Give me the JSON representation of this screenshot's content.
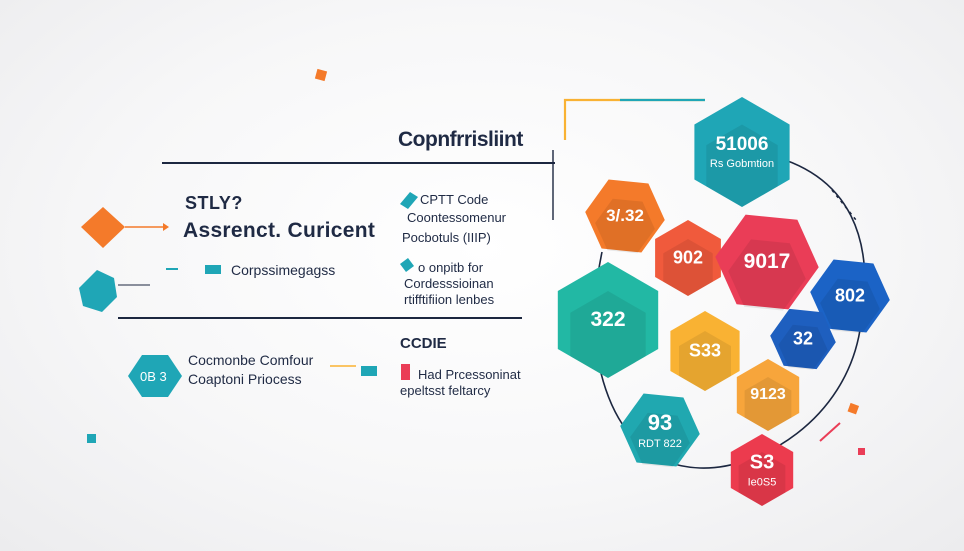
{
  "title": "Copnfrrisliint",
  "left": {
    "heading_small": "STLY?",
    "heading_big": "Assrenct. Curicent",
    "item1": "Corpssimegagss",
    "item2_line1": "Cocmonbe Comfour",
    "item2_line2": "Coaptoni Priocess",
    "item2_badge": "0B 3"
  },
  "middle": {
    "block1": [
      "CPTT Code",
      "Coontessomenur",
      "Pocbotuls (IIIP)"
    ],
    "block2": [
      "o onpitb for",
      "Cordesssioinan",
      "rtifftifiion lenbes"
    ],
    "block3_heading": "CCDIE",
    "block3": [
      "Had Prcessoninat",
      "epeltsst feltarcy"
    ]
  },
  "hexes": [
    {
      "id": "h1",
      "value": "51006",
      "sub": "Rs Gobmtion",
      "color": "#1fa6b6"
    },
    {
      "id": "h2",
      "value": "3/.32",
      "sub": "",
      "color": "#f47a2a"
    },
    {
      "id": "h3",
      "value": "902",
      "sub": "",
      "color": "#f05a3c"
    },
    {
      "id": "h4",
      "value": "9017",
      "sub": "",
      "color": "#ea3d57"
    },
    {
      "id": "h5",
      "value": "322",
      "sub": "",
      "color": "#22b8a4"
    },
    {
      "id": "h6",
      "value": "802",
      "sub": "",
      "color": "#1b63c6"
    },
    {
      "id": "h7",
      "value": "S33",
      "sub": "",
      "color": "#f9b233"
    },
    {
      "id": "h8",
      "value": "32",
      "sub": "",
      "color": "#1e5fbf"
    },
    {
      "id": "h9",
      "value": "9123",
      "sub": "",
      "color": "#f7a53b"
    },
    {
      "id": "h10",
      "value": "93",
      "sub": "RDT 822",
      "color": "#20a8b0"
    },
    {
      "id": "h11",
      "value": "S3",
      "sub": "Ie0S5",
      "color": "#ec3b4e"
    }
  ],
  "colors": {
    "navy": "#1c2740",
    "orange": "#f47a2a",
    "teal": "#1fa6b6",
    "red": "#ea3d57"
  }
}
